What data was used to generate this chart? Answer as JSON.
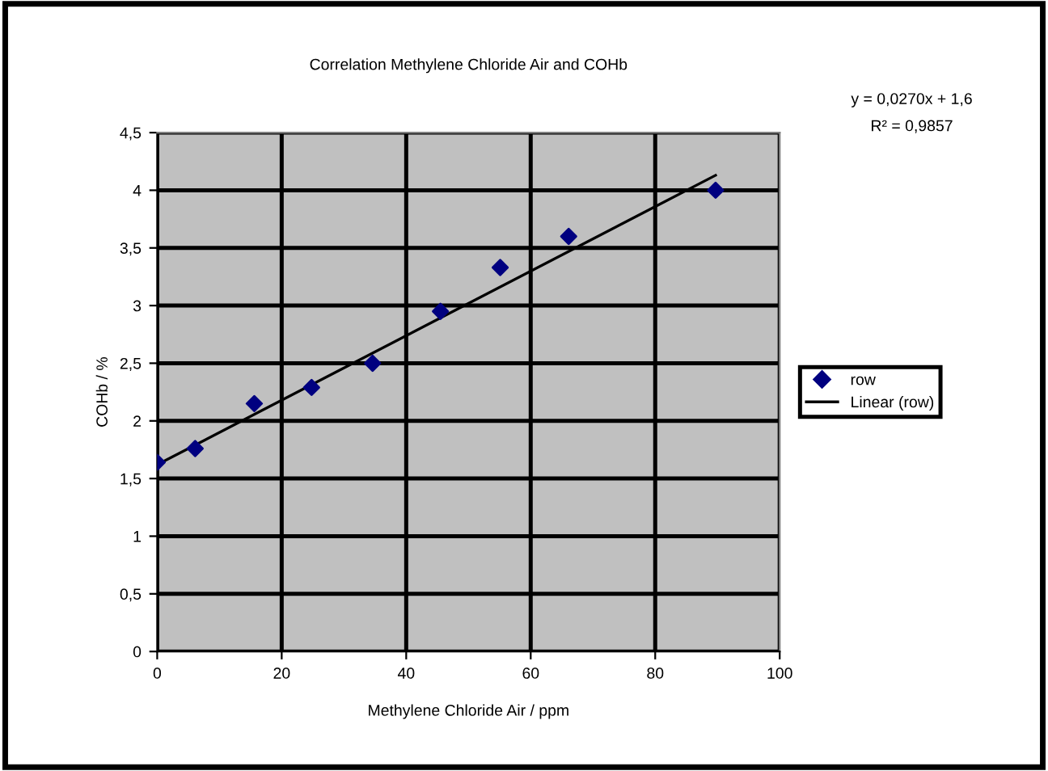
{
  "chart_data": {
    "type": "scatter",
    "title": "Correlation Methylene Chloride Air and COHb",
    "xlabel": "Methylene Chloride Air / ppm",
    "ylabel": "COHb / %",
    "x": [
      0,
      6.1,
      15.6,
      24.8,
      34.6,
      45.5,
      55.1,
      66.1,
      89.7
    ],
    "series": [
      {
        "name": "row",
        "color": "#000080",
        "marker": "diamond",
        "values": [
          1.64,
          1.76,
          2.15,
          2.29,
          2.5,
          2.95,
          3.33,
          3.6,
          4.0
        ]
      },
      {
        "name": "Linear (row)",
        "type": "line",
        "color": "#000000",
        "marker": "none",
        "line_style": "solid",
        "x": [
          0,
          89.7
        ],
        "values": [
          1.62,
          4.13
        ]
      }
    ],
    "annotations": [
      "y = 0,0270x + 1,6",
      "R² = 0,9857"
    ],
    "xlim": [
      0,
      100
    ],
    "xticks": [
      0,
      20,
      40,
      60,
      80,
      100
    ],
    "ylim": [
      0,
      4.5
    ],
    "yticks": [
      0,
      {
        "value": 0.5,
        "label": "0,5"
      },
      1,
      {
        "value": 1.5,
        "label": "1,5"
      },
      2,
      {
        "value": 2.5,
        "label": "2,5"
      },
      3,
      {
        "value": 3.5,
        "label": "3,5"
      },
      4,
      {
        "value": 4.5,
        "label": "4,5"
      }
    ],
    "grid": true,
    "legend": "right"
  }
}
